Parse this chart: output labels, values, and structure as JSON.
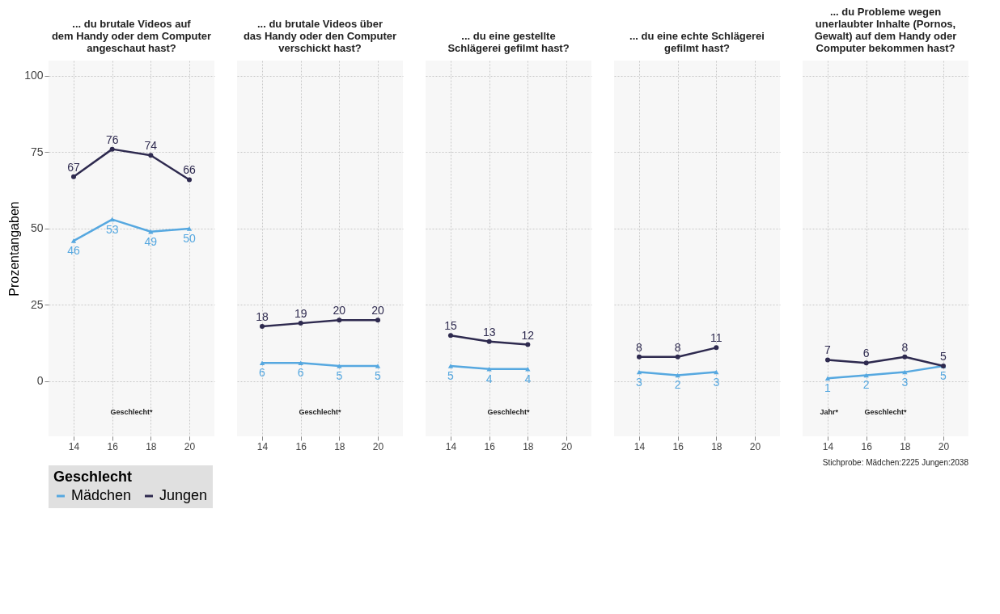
{
  "chart_data": [
    {
      "type": "line",
      "title": "... du brutale Videos auf dem Handy oder dem Computer angeschaut hast?",
      "ylabel": "Prozentangaben",
      "legend_title": "Geschlecht",
      "legend": "bottom",
      "x": [
        14,
        16,
        18,
        20
      ],
      "xlim": [
        12.7,
        21.3
      ],
      "xticks": [
        14,
        16,
        18,
        20
      ],
      "ylim": [
        -18,
        105
      ],
      "yticks": [
        0,
        25,
        50,
        75,
        100
      ],
      "grid": true,
      "data_labels": true,
      "annotations": [
        "Geschlecht*"
      ],
      "series": [
        {
          "name": "Mädchen",
          "color": "#56a8e0",
          "marker": "triangle",
          "values": [
            46,
            53,
            49,
            50
          ]
        },
        {
          "name": "Jungen",
          "color": "#2e2a4f",
          "marker": "circle",
          "values": [
            67,
            76,
            74,
            66
          ]
        }
      ]
    },
    {
      "type": "line",
      "title": "... du brutale Videos über das Handy oder den Computer verschickt hast?",
      "x": [
        14,
        16,
        18,
        20
      ],
      "xlim": [
        12.7,
        21.3
      ],
      "xticks": [
        14,
        16,
        18,
        20
      ],
      "ylim": [
        -18,
        105
      ],
      "yticks": [
        0,
        25,
        50,
        75,
        100
      ],
      "grid": true,
      "data_labels": true,
      "tick_labels": "x",
      "annotations": [
        "Geschlecht*"
      ],
      "series": [
        {
          "color": "#56a8e0",
          "marker": "triangle",
          "values": [
            6,
            6,
            5,
            5
          ]
        },
        {
          "color": "#2e2a4f",
          "marker": "circle",
          "values": [
            18,
            19,
            20,
            20
          ]
        }
      ]
    },
    {
      "type": "line",
      "title": "... du eine gestellte Schlägerei gefilmt hast?",
      "x": [
        14,
        16,
        18
      ],
      "xlim": [
        12.7,
        21.3
      ],
      "xticks": [
        14,
        16,
        18,
        20
      ],
      "ylim": [
        -18,
        105
      ],
      "yticks": [
        0,
        25,
        50,
        75,
        100
      ],
      "grid": true,
      "data_labels": true,
      "tick_labels": "x",
      "annotations": [
        "Geschlecht*"
      ],
      "series": [
        {
          "color": "#56a8e0",
          "marker": "triangle",
          "values": [
            5,
            4,
            4
          ]
        },
        {
          "color": "#2e2a4f",
          "marker": "circle",
          "values": [
            15,
            13,
            12
          ]
        }
      ]
    },
    {
      "type": "line",
      "title": "... du eine echte Schlägerei gefilmt hast?",
      "x": [
        14,
        16,
        18
      ],
      "xlim": [
        12.7,
        21.3
      ],
      "xticks": [
        14,
        16,
        18,
        20
      ],
      "ylim": [
        -18,
        105
      ],
      "yticks": [
        0,
        25,
        50,
        75,
        100
      ],
      "grid": true,
      "data_labels": true,
      "tick_labels": "x",
      "series": [
        {
          "color": "#56a8e0",
          "marker": "triangle",
          "values": [
            3,
            2,
            3
          ]
        },
        {
          "color": "#2e2a4f",
          "marker": "circle",
          "values": [
            8,
            8,
            11
          ]
        }
      ]
    },
    {
      "type": "line",
      "title": "... du Probleme wegen unerlaubter Inhalte (Pornos, Gewalt) auf dem Handy oder Computer bekommen hast?",
      "x": [
        14,
        16,
        18,
        20
      ],
      "xlim": [
        12.7,
        21.3
      ],
      "xticks": [
        14,
        16,
        18,
        20
      ],
      "ylim": [
        -18,
        105
      ],
      "yticks": [
        0,
        25,
        50,
        75,
        100
      ],
      "grid": true,
      "data_labels": true,
      "tick_labels": "x",
      "annotations": [
        "Jahr*",
        "Geschlecht*",
        "Stichprobe: Mädchen:2225 Jungen:2038"
      ],
      "series": [
        {
          "color": "#56a8e0",
          "marker": "triangle",
          "values": [
            1,
            2,
            3,
            5
          ]
        },
        {
          "color": "#2e2a4f",
          "marker": "circle",
          "values": [
            7,
            6,
            8,
            5
          ]
        }
      ]
    }
  ]
}
